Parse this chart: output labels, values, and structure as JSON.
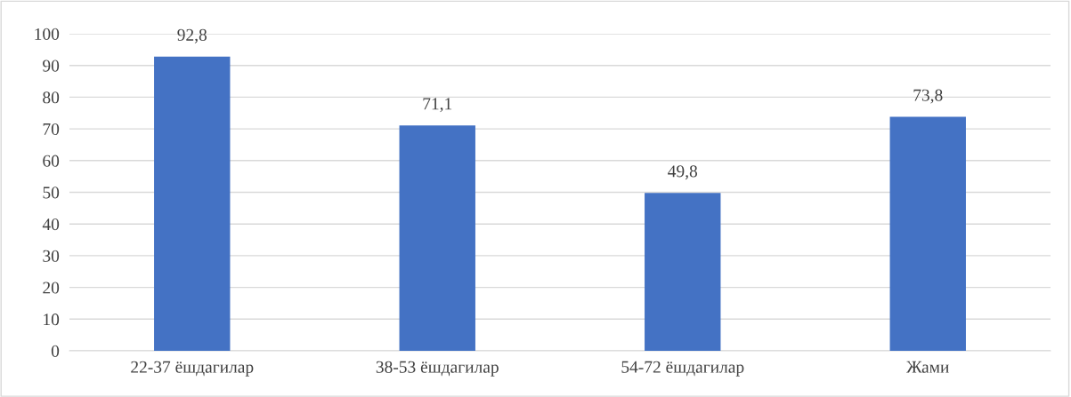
{
  "chart_data": {
    "type": "bar",
    "categories": [
      "22-37 ёшдагилар",
      "38-53 ёшдагилар",
      "54-72 ёшдагилар",
      "Жами"
    ],
    "values": [
      92.8,
      71.1,
      49.8,
      73.8
    ],
    "value_labels": [
      "92,8",
      "71,1",
      "49,8",
      "73,8"
    ],
    "color": "#4472c4",
    "ylim": [
      0,
      100
    ],
    "yticks": [
      0,
      10,
      20,
      30,
      40,
      50,
      60,
      70,
      80,
      90,
      100
    ],
    "grid": "y",
    "legend": false
  }
}
